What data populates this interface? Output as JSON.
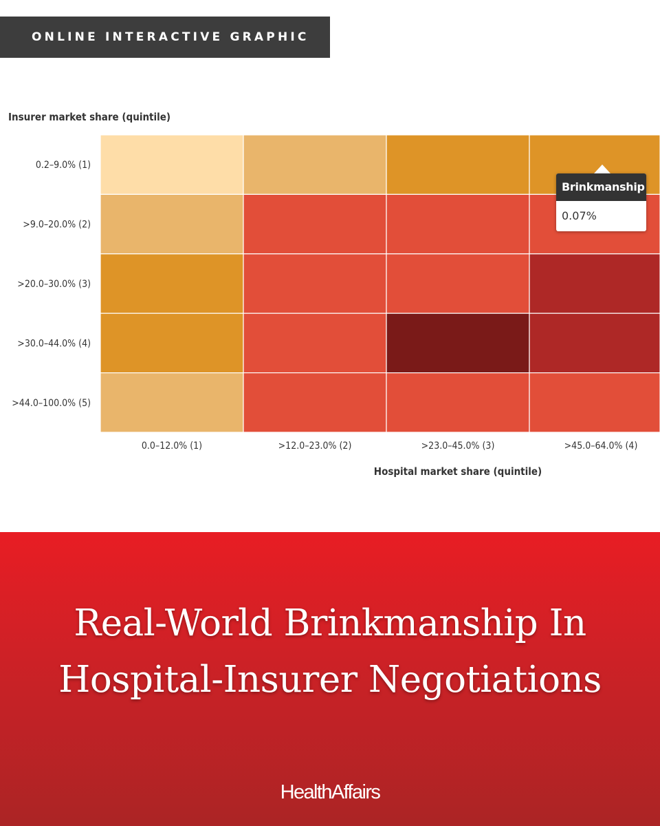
{
  "banner": {
    "label": "ONLINE INTERACTIVE GRAPHIC"
  },
  "chart_data": {
    "type": "heatmap",
    "y_title": "Insurer market share (quintile)",
    "x_title": "Hospital market share (quintile)",
    "rows": [
      "0.2–9.0% (1)",
      ">9.0–20.0% (2)",
      ">20.0–30.0% (3)",
      ">30.0–44.0% (4)",
      ">44.0–100.0% (5)"
    ],
    "columns": [
      "0.0–12.0% (1)",
      ">12.0–23.0% (2)",
      ">23.0–45.0% (3)",
      ">45.0–64.0% (4)"
    ],
    "level_colors": [
      "#fedda8",
      "#e9b56b",
      "#de9427",
      "#e24e39",
      "#ae2826",
      "#7a1a18"
    ],
    "levels": [
      [
        0,
        1,
        2,
        2
      ],
      [
        1,
        3,
        3,
        3
      ],
      [
        2,
        3,
        3,
        4
      ],
      [
        2,
        3,
        5,
        4
      ],
      [
        1,
        3,
        3,
        3
      ]
    ],
    "tooltip": {
      "series": "Brinkmanship",
      "value": "0.07%",
      "row": 0,
      "column": 3
    }
  },
  "footer": {
    "title_line1": "Real-World Brinkmanship In",
    "title_line2": "Hospital-Insurer Negotiations",
    "logo": "HealthAffairs"
  }
}
